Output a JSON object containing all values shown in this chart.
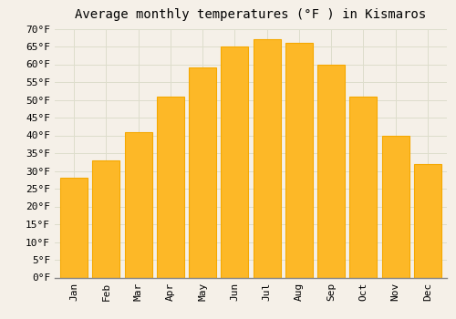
{
  "title": "Average monthly temperatures (°F ) in Kismaros",
  "months": [
    "Jan",
    "Feb",
    "Mar",
    "Apr",
    "May",
    "Jun",
    "Jul",
    "Aug",
    "Sep",
    "Oct",
    "Nov",
    "Dec"
  ],
  "values": [
    28,
    33,
    41,
    51,
    59,
    65,
    67,
    66,
    60,
    51,
    40,
    32
  ],
  "bar_color_top": "#FDB827",
  "bar_color_bottom": "#F5A800",
  "background_color": "#F5F0E8",
  "grid_color": "#DDDDCC",
  "ylim": [
    0,
    70
  ],
  "yticks": [
    0,
    5,
    10,
    15,
    20,
    25,
    30,
    35,
    40,
    45,
    50,
    55,
    60,
    65,
    70
  ],
  "title_fontsize": 10,
  "tick_fontsize": 8,
  "font_family": "monospace",
  "bar_width": 0.85
}
